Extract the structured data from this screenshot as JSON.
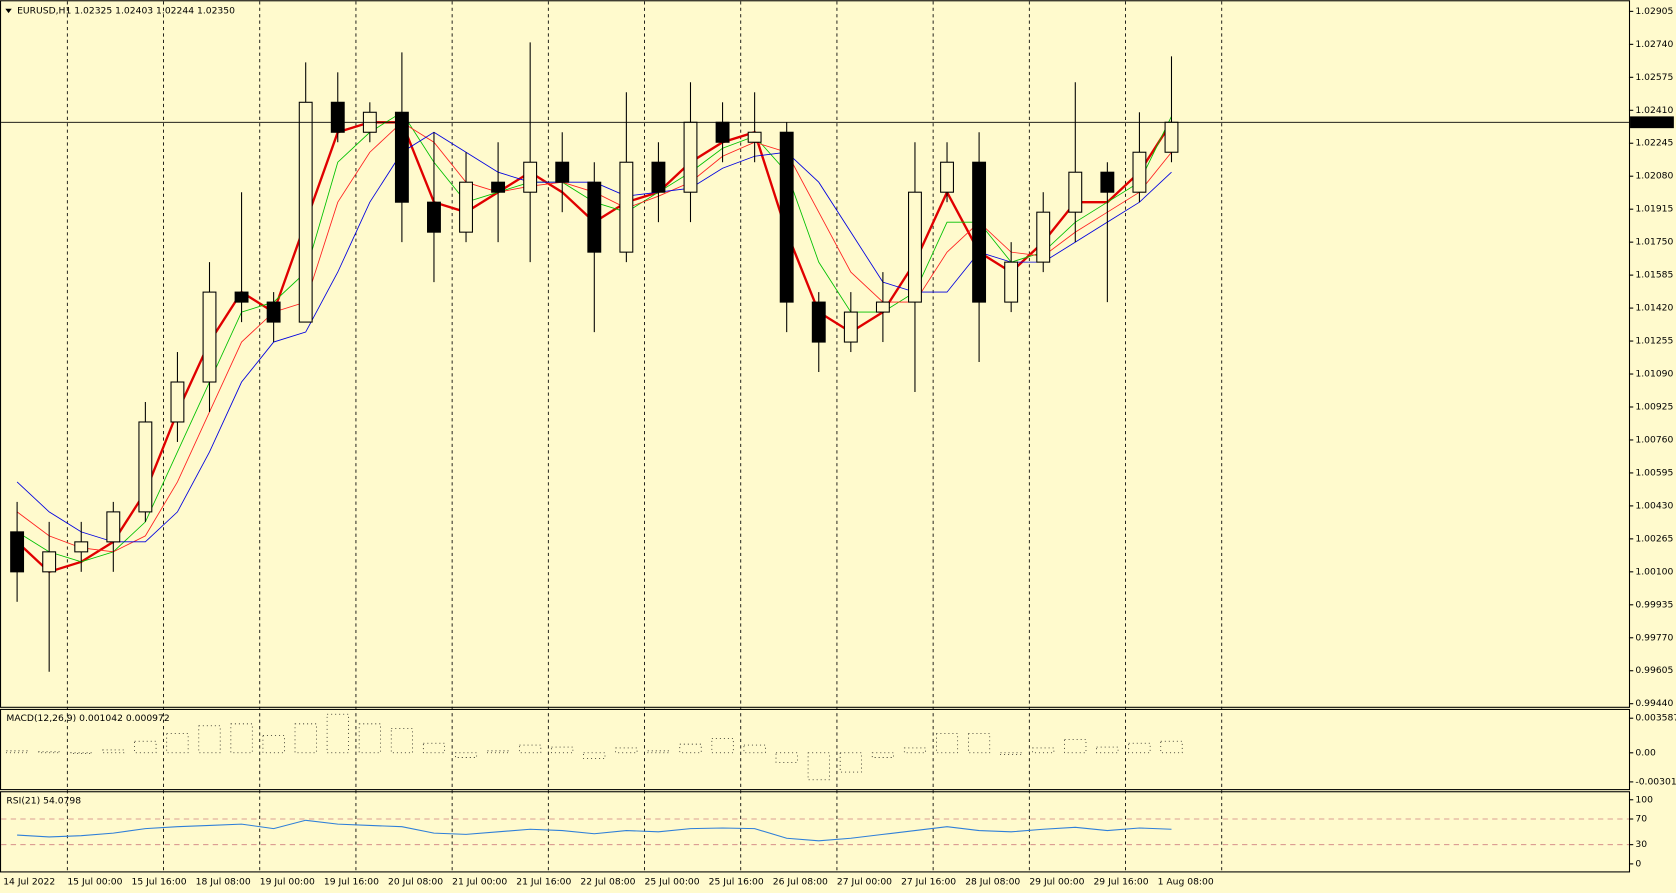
{
  "chart_data": [
    {
      "type": "candlestick",
      "title": "EURUSD,H1  1.02325 1.02403 1.02244 1.02350",
      "categories": [
        "14 Jul 2022",
        null,
        "15 Jul 00:00",
        null,
        "15 Jul 16:00",
        null,
        "18 Jul 08:00",
        null,
        "19 Jul 00:00",
        null,
        "19 Jul 16:00",
        null,
        "20 Jul 08:00",
        null,
        "21 Jul 00:00",
        null,
        "21 Jul 16:00",
        null,
        "22 Jul 08:00",
        null,
        "25 Jul 00:00",
        null,
        "25 Jul 16:00",
        null,
        "26 Jul 08:00",
        null,
        "27 Jul 00:00",
        null,
        "27 Jul 16:00",
        null,
        "28 Jul 08:00",
        null,
        "29 Jul 00:00",
        null,
        "29 Jul 16:00",
        null,
        "1 Aug 08:00"
      ],
      "open": [
        1.003,
        1.001,
        1.002,
        1.0025,
        1.004,
        1.0085,
        1.0105,
        1.015,
        1.0145,
        1.0135,
        1.0245,
        1.023,
        1.024,
        1.0195,
        1.018,
        1.0205,
        1.02,
        1.0215,
        1.0205,
        1.017,
        1.0215,
        1.02,
        1.0235,
        1.0225,
        1.023,
        1.0145,
        1.0125,
        1.014,
        1.0145,
        1.02,
        1.0215,
        1.0145,
        1.0165,
        1.019,
        1.021,
        1.02,
        1.022
      ],
      "high": [
        1.0045,
        1.0035,
        1.0035,
        1.0045,
        1.0095,
        1.012,
        1.0165,
        1.02,
        1.015,
        1.0265,
        1.026,
        1.0245,
        1.027,
        1.023,
        1.022,
        1.0225,
        1.0275,
        1.023,
        1.0215,
        1.025,
        1.0225,
        1.0255,
        1.0245,
        1.025,
        1.0235,
        1.015,
        1.015,
        1.016,
        1.0225,
        1.0225,
        1.023,
        1.0175,
        1.02,
        1.0255,
        1.0215,
        1.024,
        1.0268
      ],
      "low": [
        0.9995,
        0.996,
        1.001,
        1.001,
        1.0035,
        1.0075,
        1.009,
        1.0135,
        1.0125,
        1.0135,
        1.0225,
        1.0225,
        1.0175,
        1.0155,
        1.0175,
        1.0175,
        1.0165,
        1.019,
        1.013,
        1.0165,
        1.0185,
        1.0185,
        1.0215,
        1.0215,
        1.013,
        1.011,
        1.012,
        1.0125,
        1.01,
        1.0195,
        1.0115,
        1.014,
        1.016,
        1.0175,
        1.0145,
        1.0195,
        1.0215
      ],
      "close": [
        1.001,
        1.002,
        1.0025,
        1.004,
        1.0085,
        1.0105,
        1.015,
        1.0145,
        1.0135,
        1.0245,
        1.023,
        1.024,
        1.0195,
        1.018,
        1.0205,
        1.02,
        1.0215,
        1.0205,
        1.017,
        1.0215,
        1.02,
        1.0235,
        1.0225,
        1.023,
        1.0145,
        1.0125,
        1.014,
        1.0145,
        1.02,
        1.0215,
        1.0145,
        1.0165,
        1.019,
        1.021,
        1.02,
        1.022,
        1.0235
      ],
      "up_color": "#fffacd",
      "down_color": "#000000",
      "candle_outline": "#000000",
      "series": [
        {
          "color": "#e00000",
          "line_width": 2.2,
          "values": [
            1.0025,
            1.001,
            1.0015,
            1.0025,
            1.005,
            1.009,
            1.0125,
            1.015,
            1.014,
            1.0185,
            1.023,
            1.0235,
            1.0235,
            1.0195,
            1.019,
            1.02,
            1.021,
            1.02,
            1.0185,
            1.0195,
            1.02,
            1.0215,
            1.0225,
            1.023,
            1.018,
            1.014,
            1.013,
            1.014,
            1.0165,
            1.02,
            1.017,
            1.016,
            1.0175,
            1.0195,
            1.0195,
            1.021,
            1.0235
          ]
        },
        {
          "color": "#00c000",
          "line_width": 0.8,
          "values": [
            1.003,
            1.002,
            1.0015,
            1.002,
            1.0035,
            1.007,
            1.0105,
            1.014,
            1.0145,
            1.016,
            1.0215,
            1.023,
            1.024,
            1.0215,
            1.0195,
            1.02,
            1.0205,
            1.0205,
            1.0195,
            1.019,
            1.02,
            1.021,
            1.0222,
            1.0228,
            1.021,
            1.0165,
            1.014,
            1.014,
            1.015,
            1.0185,
            1.0185,
            1.0165,
            1.017,
            1.0185,
            1.0195,
            1.0205,
            1.0238
          ]
        },
        {
          "color": "#ff2020",
          "line_width": 0.8,
          "values": [
            1.004,
            1.0028,
            1.0022,
            1.002,
            1.0028,
            1.0055,
            1.009,
            1.0125,
            1.014,
            1.0145,
            1.0195,
            1.022,
            1.0235,
            1.0225,
            1.0205,
            1.02,
            1.0203,
            1.0205,
            1.02,
            1.0192,
            1.0198,
            1.0205,
            1.0218,
            1.0225,
            1.022,
            1.019,
            1.016,
            1.0145,
            1.0145,
            1.017,
            1.0185,
            1.017,
            1.0168,
            1.018,
            1.019,
            1.02,
            1.022
          ]
        },
        {
          "color": "#0000e0",
          "line_width": 0.8,
          "values": [
            1.0055,
            1.004,
            1.003,
            1.0025,
            1.0025,
            1.004,
            1.007,
            1.0105,
            1.0125,
            1.013,
            1.016,
            1.0195,
            1.022,
            1.023,
            1.022,
            1.021,
            1.0205,
            1.0205,
            1.0205,
            1.0198,
            1.02,
            1.0202,
            1.0212,
            1.0218,
            1.022,
            1.0205,
            1.018,
            1.0155,
            1.015,
            1.015,
            1.017,
            1.0165,
            1.0165,
            1.0175,
            1.0185,
            1.0195,
            1.021
          ]
        }
      ],
      "last_price": {
        "value": 1.0235,
        "label": "1.02350"
      },
      "ylim": [
        0.9943,
        1.0295
      ],
      "yticks": [
        {
          "value": 0.9944,
          "label": "0.99440"
        },
        0.99605,
        {
          "value": 0.9977,
          "label": "0.99770"
        },
        0.99935,
        {
          "value": 1.001,
          "label": "1.00100"
        },
        1.00265,
        {
          "value": 1.0043,
          "label": "1.00430"
        },
        1.00595,
        {
          "value": 1.0076,
          "label": "1.00760"
        },
        1.00925,
        {
          "value": 1.0109,
          "label": "1.01090"
        },
        1.01255,
        {
          "value": 1.0142,
          "label": "1.01420"
        },
        1.01585,
        {
          "value": 1.0175,
          "label": "1.01750"
        },
        1.01915,
        {
          "value": 1.0208,
          "label": "1.02080"
        },
        1.02245,
        {
          "value": 1.0241,
          "label": "1.02410"
        },
        1.02575,
        {
          "value": 1.0274,
          "label": "1.02740"
        },
        1.02905
      ],
      "grid": true
    },
    {
      "type": "bar",
      "title": "MACD(12,26,9) 0.001042 0.000972",
      "color": "#000000",
      "values": [
        0.0002,
        0.0001,
        0.0,
        0.0003,
        0.0012,
        0.002,
        0.0028,
        0.003,
        0.0018,
        0.003,
        0.004,
        0.003,
        0.0025,
        0.001,
        -0.0005,
        0.0002,
        0.0008,
        0.0006,
        -0.0006,
        0.0005,
        0.0002,
        0.0009,
        0.0015,
        0.0008,
        -0.001,
        -0.0028,
        -0.002,
        -0.0005,
        0.0005,
        0.002,
        0.002,
        -0.0002,
        0.0005,
        0.0014,
        0.0006,
        0.001,
        0.0012
      ],
      "ylim": [
        -0.00365,
        0.00433
      ],
      "yticks": [
        0.003587,
        {
          "value": 0,
          "label": "0.00"
        },
        -0.003016
      ]
    },
    {
      "type": "line",
      "title": "RSI(21) 54.0798",
      "color": "#2f7fd8",
      "values": [
        45,
        42,
        44,
        48,
        55,
        58,
        60,
        62,
        55,
        68,
        62,
        60,
        58,
        48,
        46,
        50,
        54,
        52,
        47,
        52,
        50,
        55,
        56,
        55,
        40,
        36,
        40,
        46,
        52,
        58,
        52,
        50,
        54,
        57,
        52,
        56,
        54
      ],
      "ylim": [
        -10,
        110
      ],
      "yticks": [
        100,
        70,
        30,
        0
      ],
      "levels": [
        70,
        30
      ],
      "level_color": "#d08080"
    }
  ]
}
